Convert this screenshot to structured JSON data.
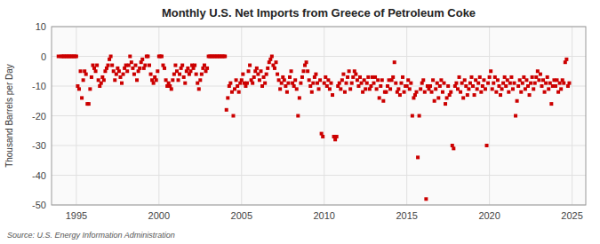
{
  "chart_data": {
    "type": "scatter",
    "title": "Monthly U.S. Net Imports from Greece of Petroleum Coke",
    "y_label": "Thousand Barrels per Day",
    "source": "Source: U.S. Energy Information Administration",
    "color": "#CC0000",
    "marker": "square",
    "grid": true,
    "xlim": [
      1993.5,
      2025.83
    ],
    "xticks": [
      1995,
      2000,
      2005,
      2010,
      2015,
      2020,
      2025
    ],
    "ylim": [
      -50,
      10
    ],
    "yticks": [
      -50,
      -40,
      -30,
      -20,
      -10,
      0,
      10
    ],
    "x": [
      1993.917,
      1994.083,
      1994.167,
      1994.25,
      1994.333,
      1994.417,
      1994.5,
      1994.583,
      1994.667,
      1994.75,
      1994.833,
      1994.917,
      1995.0,
      1995.083,
      1995.167,
      1995.25,
      1995.333,
      1995.417,
      1995.5,
      1995.583,
      1995.667,
      1995.75,
      1995.833,
      1995.917,
      1996.0,
      1996.083,
      1996.167,
      1996.25,
      1996.333,
      1996.417,
      1996.5,
      1996.583,
      1996.667,
      1996.75,
      1996.833,
      1996.917,
      1997.0,
      1997.083,
      1997.167,
      1997.25,
      1997.333,
      1997.417,
      1997.5,
      1997.583,
      1997.667,
      1997.75,
      1997.833,
      1997.917,
      1998.0,
      1998.083,
      1998.167,
      1998.25,
      1998.333,
      1998.417,
      1998.5,
      1998.583,
      1998.667,
      1998.75,
      1998.833,
      1998.917,
      1999.0,
      1999.083,
      1999.167,
      1999.25,
      1999.333,
      1999.417,
      1999.5,
      1999.583,
      1999.667,
      1999.75,
      1999.833,
      1999.917,
      2000.0,
      2000.083,
      2000.167,
      2000.25,
      2000.333,
      2000.417,
      2000.5,
      2000.583,
      2000.667,
      2000.75,
      2000.833,
      2000.917,
      2001.0,
      2001.083,
      2001.167,
      2001.25,
      2001.333,
      2001.417,
      2001.5,
      2001.583,
      2001.667,
      2001.75,
      2001.833,
      2001.917,
      2002.0,
      2002.083,
      2002.167,
      2002.25,
      2002.333,
      2002.417,
      2002.5,
      2002.583,
      2002.667,
      2002.75,
      2002.833,
      2002.917,
      2003.0,
      2003.083,
      2003.167,
      2003.25,
      2003.333,
      2003.417,
      2003.5,
      2003.583,
      2003.667,
      2003.75,
      2003.833,
      2003.917,
      2004.0,
      2004.083,
      2004.167,
      2004.25,
      2004.333,
      2004.417,
      2004.5,
      2004.583,
      2004.667,
      2004.75,
      2004.833,
      2004.917,
      2005.0,
      2005.083,
      2005.167,
      2005.25,
      2005.333,
      2005.417,
      2005.5,
      2005.583,
      2005.667,
      2005.75,
      2005.833,
      2005.917,
      2006.0,
      2006.083,
      2006.167,
      2006.25,
      2006.333,
      2006.417,
      2006.5,
      2006.583,
      2006.667,
      2006.75,
      2006.833,
      2006.917,
      2007.0,
      2007.083,
      2007.167,
      2007.25,
      2007.333,
      2007.417,
      2007.5,
      2007.583,
      2007.667,
      2007.75,
      2007.833,
      2007.917,
      2008.0,
      2008.083,
      2008.167,
      2008.25,
      2008.333,
      2008.417,
      2008.5,
      2008.583,
      2008.667,
      2008.75,
      2008.833,
      2008.917,
      2009.0,
      2009.083,
      2009.167,
      2009.25,
      2009.333,
      2009.417,
      2009.5,
      2009.583,
      2009.667,
      2009.75,
      2009.833,
      2009.917,
      2010.0,
      2010.083,
      2010.167,
      2010.25,
      2010.333,
      2010.417,
      2010.5,
      2010.583,
      2010.667,
      2010.75,
      2010.833,
      2010.917,
      2011.0,
      2011.083,
      2011.167,
      2011.25,
      2011.333,
      2011.417,
      2011.5,
      2011.583,
      2011.667,
      2011.75,
      2011.833,
      2011.917,
      2012.0,
      2012.083,
      2012.167,
      2012.25,
      2012.333,
      2012.417,
      2012.5,
      2012.583,
      2012.667,
      2012.75,
      2012.833,
      2012.917,
      2013.0,
      2013.083,
      2013.167,
      2013.25,
      2013.333,
      2013.417,
      2013.5,
      2013.583,
      2013.667,
      2013.75,
      2013.833,
      2013.917,
      2014.0,
      2014.083,
      2014.167,
      2014.25,
      2014.333,
      2014.417,
      2014.5,
      2014.583,
      2014.667,
      2014.75,
      2014.833,
      2014.917,
      2015.0,
      2015.083,
      2015.167,
      2015.25,
      2015.333,
      2015.417,
      2015.5,
      2015.583,
      2015.667,
      2015.75,
      2015.833,
      2015.917,
      2016.0,
      2016.083,
      2016.167,
      2016.25,
      2016.333,
      2016.417,
      2016.5,
      2016.583,
      2016.667,
      2016.75,
      2016.833,
      2016.917,
      2017.0,
      2017.083,
      2017.167,
      2017.25,
      2017.333,
      2017.417,
      2017.5,
      2017.583,
      2017.667,
      2017.75,
      2017.833,
      2017.917,
      2018.0,
      2018.083,
      2018.167,
      2018.25,
      2018.333,
      2018.417,
      2018.5,
      2018.583,
      2018.667,
      2018.75,
      2018.833,
      2018.917,
      2019.0,
      2019.083,
      2019.167,
      2019.25,
      2019.333,
      2019.417,
      2019.5,
      2019.583,
      2019.667,
      2019.75,
      2019.833,
      2019.917,
      2020.0,
      2020.083,
      2020.167,
      2020.25,
      2020.333,
      2020.417,
      2020.5,
      2020.583,
      2020.667,
      2020.75,
      2020.833,
      2020.917,
      2021.0,
      2021.083,
      2021.167,
      2021.25,
      2021.333,
      2021.417,
      2021.5,
      2021.583,
      2021.667,
      2021.75,
      2021.833,
      2021.917,
      2022.0,
      2022.083,
      2022.167,
      2022.25,
      2022.333,
      2022.417,
      2022.5,
      2022.583,
      2022.667,
      2022.75,
      2022.833,
      2022.917,
      2023.0,
      2023.083,
      2023.167,
      2023.25,
      2023.333,
      2023.417,
      2023.5,
      2023.583,
      2023.667,
      2023.75,
      2023.833,
      2023.917,
      2024.0,
      2024.083,
      2024.167,
      2024.25,
      2024.333,
      2024.417,
      2024.5,
      2024.583,
      2024.667,
      2024.75,
      2024.833
    ],
    "values": [
      0,
      0,
      0,
      0,
      0,
      0,
      0,
      0,
      0,
      0,
      0,
      0,
      0,
      -10,
      -11,
      -5,
      -14,
      -8,
      -5,
      -6,
      -16,
      -16,
      -11,
      -7,
      -3,
      -4,
      -5,
      -3,
      -8,
      -10,
      -9,
      -7,
      -8,
      -5,
      -4,
      -3,
      -1,
      0,
      -3,
      -5,
      -8,
      -6,
      -4,
      -5,
      -7,
      -9,
      -6,
      -4,
      -3,
      -5,
      -3,
      0,
      -2,
      -4,
      -6,
      -3,
      -8,
      -5,
      -4,
      -2,
      -1,
      -4,
      -3,
      0,
      0,
      -3,
      -6,
      -8,
      -9,
      -7,
      -8,
      -5,
      0,
      0,
      0,
      -3,
      -4,
      -8,
      -10,
      -9,
      -10,
      -11,
      -8,
      -6,
      -3,
      -5,
      -8,
      -6,
      -4,
      -3,
      -7,
      -9,
      -5,
      -4,
      -6,
      -5,
      -3,
      -4,
      -3,
      -6,
      -9,
      -11,
      -8,
      -6,
      -4,
      -3,
      -5,
      -4,
      0,
      0,
      0,
      0,
      0,
      0,
      0,
      0,
      0,
      0,
      0,
      0,
      0,
      -18,
      -14,
      -10,
      -9,
      -12,
      -20,
      -11,
      -8,
      -10,
      -12,
      -9,
      -8,
      -6,
      -9,
      -10,
      -9,
      -5,
      -3,
      -8,
      -9,
      -7,
      -5,
      -4,
      -6,
      -8,
      -5,
      -10,
      -7,
      -9,
      -6,
      -4,
      -2,
      -1,
      0,
      -3,
      -4,
      -2,
      -6,
      -8,
      -11,
      -9,
      -7,
      -8,
      -10,
      -12,
      -9,
      -7,
      -5,
      -9,
      -10,
      -8,
      -11,
      -20,
      -14,
      -9,
      -7,
      -5,
      -3,
      -2,
      -5,
      -8,
      -10,
      -12,
      -9,
      -7,
      -6,
      -9,
      -11,
      -8,
      -26,
      -27,
      -9,
      -7,
      -10,
      -8,
      -11,
      -9,
      -13,
      -27,
      -28,
      -27,
      -10,
      -9,
      -11,
      -8,
      -6,
      -12,
      -9,
      -7,
      -5,
      -11,
      -9,
      -7,
      -5,
      -6,
      -8,
      -10,
      -7,
      -9,
      -12,
      -8,
      -11,
      -9,
      -7,
      -11,
      -10,
      -7,
      -9,
      -7,
      -11,
      -8,
      -14,
      -10,
      -8,
      -15,
      -12,
      -12,
      -10,
      -8,
      -11,
      -8,
      -7,
      -2,
      -9,
      -12,
      -11,
      -13,
      -9,
      -7,
      -12,
      -10,
      -10,
      -8,
      -11,
      -9,
      -20,
      -14,
      -13,
      -12,
      -34,
      -20,
      -11,
      -9,
      -8,
      -12,
      -48,
      -10,
      -11,
      -10,
      -12,
      -8,
      -15,
      -11,
      -9,
      -14,
      -10,
      -8,
      -12,
      -9,
      -16,
      -14,
      -10,
      -13,
      -12,
      -30,
      -31,
      -10,
      -9,
      -11,
      -7,
      -12,
      -9,
      -14,
      -8,
      -10,
      -13,
      -11,
      -9,
      -7,
      -10,
      -13,
      -8,
      -11,
      -9,
      -7,
      -12,
      -10,
      -8,
      -11,
      -30,
      -9,
      -7,
      -5,
      -11,
      -9,
      -7,
      -12,
      -8,
      -10,
      -13,
      -11,
      -9,
      -7,
      -10,
      -8,
      -12,
      -9,
      -7,
      -11,
      -9,
      -20,
      -15,
      -10,
      -8,
      -12,
      -9,
      -7,
      -11,
      -8,
      -10,
      -13,
      -9,
      -7,
      -11,
      -9,
      -7,
      -5,
      -8,
      -6,
      -10,
      -8,
      -12,
      -9,
      -7,
      -11,
      -9,
      -16,
      -10,
      -8,
      -10,
      -8,
      -12,
      -9,
      -11,
      -8,
      -9,
      -2,
      -1,
      -10,
      -9
    ]
  }
}
